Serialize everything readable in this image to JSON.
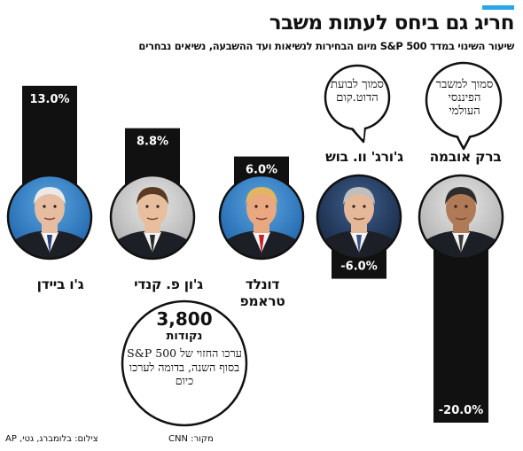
{
  "header": {
    "title": "חריג גם ביחס לעתות משבר",
    "subtitle": "שיעור השינוי במדד S&P 500 מיום הבחירות לנשיאות ועד ההשבעה, נשיאים נבחרים"
  },
  "chart_data": {
    "type": "bar",
    "categories": [
      "ברק אובמה",
      "ג'ורג' וו. בוש",
      "דונלד טראמפ",
      "ג'ון פ. קנדי",
      "ג'ו ביידן"
    ],
    "values": [
      -20.0,
      -6.0,
      6.0,
      8.8,
      13.0
    ],
    "value_labels": [
      "-20.0%",
      "-6.0%",
      "6.0%",
      "8.8%",
      "13.0%"
    ],
    "title": "",
    "xlabel": "",
    "ylabel": "",
    "ylim": [
      -20,
      13
    ],
    "grid": false,
    "bar_color": "#111111"
  },
  "annotations": {
    "obama_note": "סמוך למשבר הפיננסי העולמי",
    "bush_note": "סמוך לבועת הדוט.קום",
    "forecast_value": "3,800",
    "forecast_unit": "נקודות",
    "forecast_text": "ערכו החזוי של S&P 500 בסוף השנה, בדומה לערכו כיום"
  },
  "footer": {
    "source": "מקור: CNN",
    "photos": "צילום: בלומברג, גטי, AP"
  },
  "colors": {
    "accent": "#2aa6e6",
    "bar": "#111111"
  }
}
